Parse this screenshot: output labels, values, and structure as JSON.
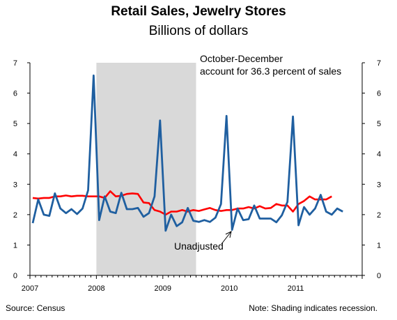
{
  "chart_data": {
    "type": "line",
    "title": "Retail Sales, Jewelry Stores",
    "subtitle": "Billions of dollars",
    "ylim": [
      0,
      7
    ],
    "yticks": [
      0,
      1,
      2,
      3,
      4,
      5,
      6,
      7
    ],
    "x_start_label": "2007",
    "x_tick_labels": [
      "2007",
      "2008",
      "2009",
      "2010",
      "2011"
    ],
    "x_period": "monthly, Jan 2007 – Oct 2011",
    "recession_shading": {
      "start": "Jan 2008",
      "end": "Jun 2009"
    },
    "series": [
      {
        "name": "Unadjusted",
        "color": "#1f5fa0",
        "values": [
          1.72,
          2.5,
          2.0,
          1.96,
          2.7,
          2.2,
          2.05,
          2.18,
          2.02,
          2.2,
          2.8,
          6.58,
          1.82,
          2.6,
          2.1,
          2.05,
          2.72,
          2.18,
          2.18,
          2.22,
          1.93,
          2.05,
          2.6,
          5.1,
          1.47,
          2.0,
          1.62,
          1.75,
          2.22,
          1.8,
          1.76,
          1.82,
          1.76,
          1.9,
          2.35,
          5.25,
          1.5,
          2.2,
          1.82,
          1.85,
          2.3,
          1.87,
          1.87,
          1.87,
          1.75,
          1.98,
          2.42,
          5.23,
          1.65,
          2.25,
          2.0,
          2.2,
          2.65,
          2.1,
          2.0,
          2.2,
          2.1
        ]
      },
      {
        "name": "",
        "color": "#ff0000",
        "values": [
          2.55,
          2.53,
          2.55,
          2.55,
          2.6,
          2.6,
          2.63,
          2.6,
          2.62,
          2.62,
          2.6,
          2.6,
          2.6,
          2.55,
          2.77,
          2.6,
          2.62,
          2.68,
          2.7,
          2.68,
          2.4,
          2.38,
          2.15,
          2.1,
          2.0,
          2.1,
          2.1,
          2.15,
          2.1,
          2.15,
          2.12,
          2.17,
          2.22,
          2.15,
          2.12,
          2.15,
          2.15,
          2.2,
          2.2,
          2.25,
          2.2,
          2.28,
          2.2,
          2.22,
          2.35,
          2.3,
          2.3,
          2.1,
          2.35,
          2.45,
          2.6,
          2.5,
          2.5,
          2.5,
          2.6
        ]
      }
    ],
    "annotations": {
      "note_top_line1": "October-December",
      "note_top_line2": "account for 36.3 percent of sales",
      "series_label": "Unadjusted"
    }
  },
  "footer": {
    "source": "Source:  Census",
    "note": "Note: Shading indicates recession."
  }
}
